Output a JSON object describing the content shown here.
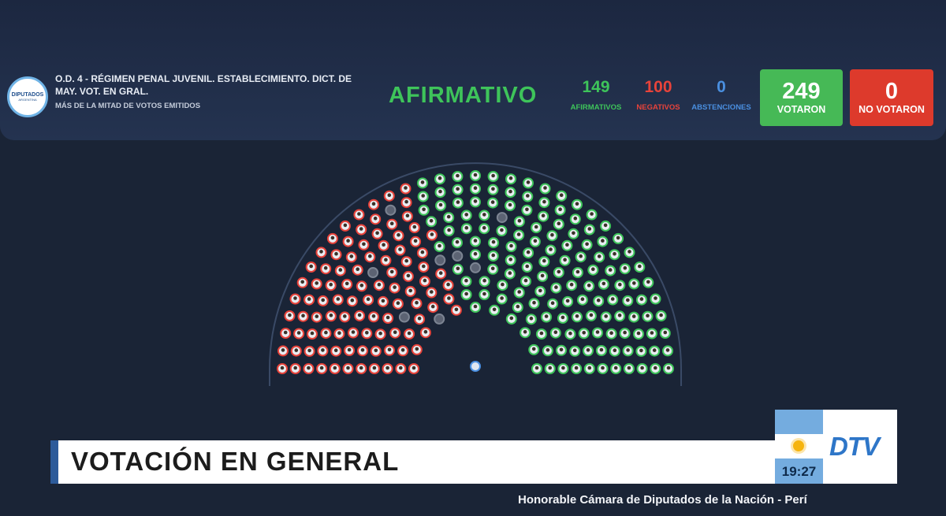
{
  "header": {
    "logo_text": "DIPUTADOS",
    "logo_subtext": "ARGENTINA",
    "title": "O.D. 4 - RÉGIMEN PENAL JUVENIL. ESTABLECIMIENTO. DICT. DE MAY. VOT. EN GRAL.",
    "subtitle": "MÁS DE LA MITAD DE VOTOS EMITIDOS",
    "result": "AFIRMATIVO",
    "afirmativos": {
      "value": "149",
      "label": "AFIRMATIVOS"
    },
    "negativos": {
      "value": "100",
      "label": "NEGATIVOS"
    },
    "abstenciones": {
      "value": "0",
      "label": "ABSTENCIONES"
    },
    "votaron": {
      "value": "249",
      "label": "VOTARON"
    },
    "no_votaron": {
      "value": "0",
      "label": "NO VOTARON"
    }
  },
  "colors": {
    "afirmativo": "#3ec45a",
    "negativo": "#e8433a",
    "abstencion": "#4a8fe0",
    "sin_voto": "#7c8492"
  },
  "hemicycle": {
    "seat_counts": {
      "afirmativo": 149,
      "negativo": 100,
      "sin_voto": 8
    }
  },
  "lower_third": {
    "title": "VOTACIÓN EN GENERAL",
    "clock": "19:27",
    "channel": "DTV"
  },
  "footer": {
    "text": "Honorable Cámara de Diputados de la Nación - Perí"
  }
}
